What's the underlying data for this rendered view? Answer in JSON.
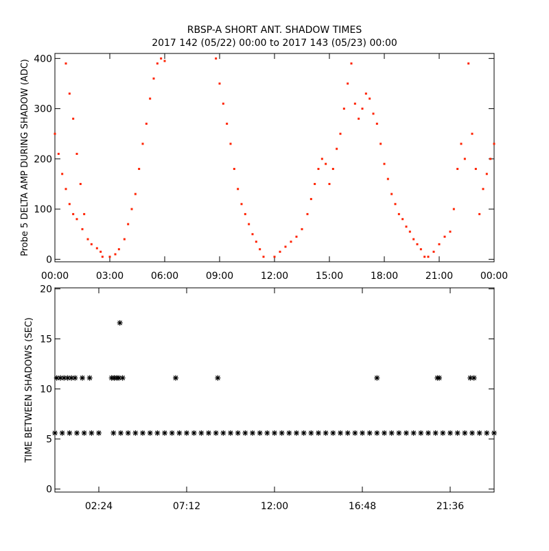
{
  "chart_data": [
    {
      "type": "scatter",
      "title": "RBSP-A SHORT ANT. SHADOW TIMES",
      "subtitle": "2017 142 (05/22) 00:00 to 2017 143 (05/23) 00:00",
      "ylabel": "Probe 5 DELTA AMP DURING SHADOW (ADC)",
      "color": "#ff2200",
      "marker": "dot",
      "xlim": [
        0,
        24
      ],
      "ylim": [
        -5,
        410
      ],
      "xticks": [
        {
          "value": 0,
          "label": "00:00"
        },
        {
          "value": 3,
          "label": "03:00"
        },
        {
          "value": 6,
          "label": "06:00"
        },
        {
          "value": 9,
          "label": "09:00"
        },
        {
          "value": 12,
          "label": "12:00"
        },
        {
          "value": 15,
          "label": "15:00"
        },
        {
          "value": 18,
          "label": "18:00"
        },
        {
          "value": 21,
          "label": "21:00"
        },
        {
          "value": 24,
          "label": "00:00"
        }
      ],
      "yticks": [
        0,
        100,
        200,
        300,
        400
      ],
      "x": [
        0.0,
        0.2,
        0.4,
        0.6,
        0.8,
        1.0,
        1.2,
        0.6,
        0.8,
        1.0,
        1.2,
        1.4,
        1.6,
        1.5,
        1.8,
        2.0,
        2.3,
        2.5,
        2.6,
        3.0,
        3.3,
        3.5,
        3.8,
        4.0,
        4.2,
        4.4,
        4.6,
        4.8,
        5.0,
        5.2,
        5.4,
        5.6,
        5.8,
        6.0,
        8.8,
        9.0,
        9.2,
        9.4,
        9.6,
        9.8,
        10.0,
        10.2,
        10.4,
        10.6,
        10.8,
        11.0,
        11.2,
        11.4,
        12.0,
        12.3,
        12.6,
        12.9,
        13.2,
        13.5,
        13.8,
        14.0,
        14.2,
        14.4,
        14.6,
        14.8,
        15.0,
        15.2,
        15.4,
        15.6,
        15.8,
        16.0,
        16.2,
        16.4,
        16.6,
        16.8,
        17.0,
        17.2,
        17.4,
        17.6,
        17.8,
        18.0,
        18.2,
        18.4,
        18.6,
        18.8,
        19.0,
        19.2,
        19.4,
        19.6,
        19.8,
        20.0,
        20.2,
        20.4,
        20.7,
        21.0,
        21.3,
        21.6,
        21.8,
        22.0,
        22.2,
        22.4,
        22.6,
        22.8,
        23.0,
        23.2,
        23.4,
        23.6,
        23.8,
        24.0
      ],
      "values": [
        250,
        210,
        170,
        140,
        110,
        90,
        80,
        390,
        330,
        280,
        210,
        150,
        90,
        60,
        40,
        30,
        22,
        15,
        5,
        5,
        10,
        20,
        40,
        70,
        100,
        130,
        180,
        230,
        270,
        320,
        360,
        390,
        400,
        395,
        400,
        350,
        310,
        270,
        230,
        180,
        140,
        110,
        90,
        70,
        50,
        35,
        20,
        5,
        5,
        15,
        25,
        35,
        45,
        60,
        90,
        120,
        150,
        180,
        200,
        190,
        150,
        180,
        220,
        250,
        300,
        350,
        390,
        310,
        280,
        300,
        330,
        320,
        290,
        270,
        230,
        190,
        160,
        130,
        110,
        90,
        80,
        65,
        55,
        40,
        30,
        20,
        5,
        5,
        15,
        30,
        45,
        55,
        100,
        180,
        230,
        200,
        390,
        250,
        180,
        90,
        140,
        170,
        200,
        230
      ]
    },
    {
      "type": "scatter",
      "ylabel": "TIME BETWEEN SHADOWS (SEC)",
      "color": "#000000",
      "marker": "asterisk",
      "xlim": [
        0,
        24
      ],
      "ylim": [
        -0.3,
        20.1
      ],
      "xticks": [
        {
          "value": 2.4,
          "label": "02:24"
        },
        {
          "value": 7.2,
          "label": "07:12"
        },
        {
          "value": 12,
          "label": "12:00"
        },
        {
          "value": 16.8,
          "label": "16:48"
        },
        {
          "value": 21.6,
          "label": "21:36"
        }
      ],
      "yticks": [
        0,
        5,
        10,
        15,
        20
      ],
      "x": [
        0,
        0.4,
        0.8,
        1.2,
        1.6,
        2.0,
        2.4,
        3.2,
        3.6,
        4.0,
        4.4,
        4.8,
        5.2,
        5.6,
        6.0,
        6.4,
        6.8,
        7.2,
        7.6,
        8.0,
        8.4,
        8.8,
        9.2,
        9.6,
        10.0,
        10.4,
        10.8,
        11.2,
        11.6,
        12.0,
        12.4,
        12.8,
        13.2,
        13.6,
        14.0,
        14.4,
        14.8,
        15.2,
        15.6,
        16.0,
        16.4,
        16.8,
        17.2,
        17.6,
        18.0,
        18.4,
        18.8,
        19.2,
        19.6,
        20.0,
        20.4,
        20.8,
        21.2,
        21.6,
        22.0,
        22.4,
        22.8,
        23.2,
        23.6,
        24.0,
        0.1,
        0.3,
        0.5,
        0.7,
        0.9,
        1.1,
        1.5,
        1.9,
        3.1,
        3.25,
        3.4,
        3.5,
        3.7,
        6.6,
        8.9,
        17.6,
        20.9,
        21.0,
        22.7,
        22.9,
        3.55
      ],
      "values": [
        5.6,
        5.6,
        5.6,
        5.6,
        5.6,
        5.6,
        5.6,
        5.6,
        5.6,
        5.6,
        5.6,
        5.6,
        5.6,
        5.6,
        5.6,
        5.6,
        5.6,
        5.6,
        5.6,
        5.6,
        5.6,
        5.6,
        5.6,
        5.6,
        5.6,
        5.6,
        5.6,
        5.6,
        5.6,
        5.6,
        5.6,
        5.6,
        5.6,
        5.6,
        5.6,
        5.6,
        5.6,
        5.6,
        5.6,
        5.6,
        5.6,
        5.6,
        5.6,
        5.6,
        5.6,
        5.6,
        5.6,
        5.6,
        5.6,
        5.6,
        5.6,
        5.6,
        5.6,
        5.6,
        5.6,
        5.6,
        5.6,
        5.6,
        5.6,
        5.6,
        11.1,
        11.1,
        11.1,
        11.1,
        11.1,
        11.1,
        11.1,
        11.1,
        11.1,
        11.1,
        11.1,
        11.1,
        11.1,
        11.1,
        11.1,
        11.1,
        11.1,
        11.1,
        11.1,
        11.1,
        16.6
      ]
    }
  ]
}
